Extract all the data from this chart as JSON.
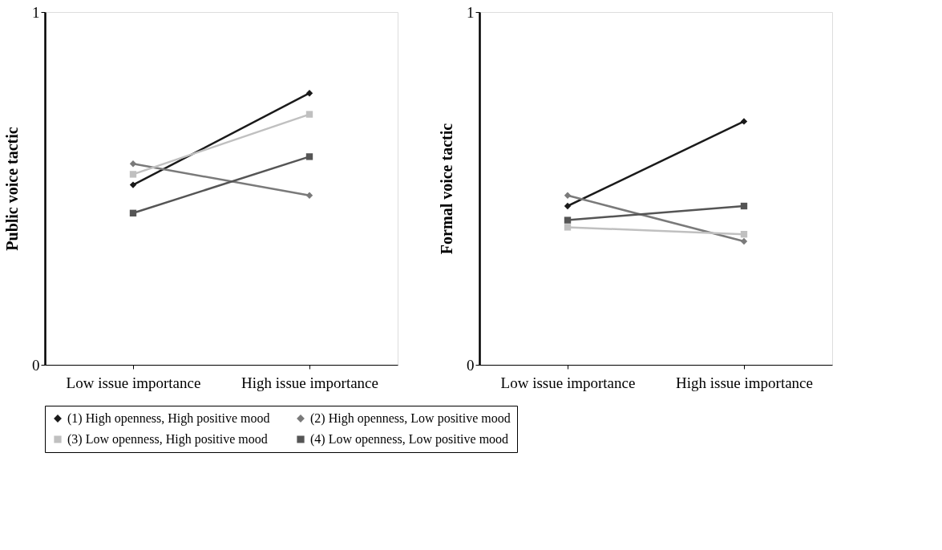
{
  "chart_data": [
    {
      "type": "line",
      "ylabel": "Public voice tactic",
      "categories": [
        "Low issue importance",
        "High issue importance"
      ],
      "ylim": [
        0,
        1
      ],
      "yticks": [
        0,
        1
      ],
      "legend": "bottom",
      "line_style": "solid",
      "series": [
        {
          "name": "(1) High openness, High positive mood",
          "color": "#1a1a1a",
          "marker": "diamond",
          "values": [
            0.51,
            0.77
          ]
        },
        {
          "name": "(2) High openness, Low positive mood",
          "color": "#7a7a7a",
          "marker": "diamond",
          "values": [
            0.57,
            0.48
          ]
        },
        {
          "name": "(3) Low openness, High positive mood",
          "color": "#c0c0c0",
          "marker": "square",
          "values": [
            0.54,
            0.71
          ]
        },
        {
          "name": "(4) Low openness, Low positive mood",
          "color": "#555555",
          "marker": "square",
          "values": [
            0.43,
            0.59
          ]
        }
      ]
    },
    {
      "type": "line",
      "ylabel": "Formal  voice tactic",
      "categories": [
        "Low issue importance",
        "High issue importance"
      ],
      "ylim": [
        0,
        1
      ],
      "yticks": [
        0,
        1
      ],
      "legend": "bottom",
      "line_style": "solid",
      "series": [
        {
          "name": "(1) High openness, High positive mood",
          "color": "#1a1a1a",
          "marker": "diamond",
          "values": [
            0.45,
            0.69
          ]
        },
        {
          "name": "(2) High openness, Low positive mood",
          "color": "#7a7a7a",
          "marker": "diamond",
          "values": [
            0.48,
            0.35
          ]
        },
        {
          "name": "(3) Low openness, High positive mood",
          "color": "#c0c0c0",
          "marker": "square",
          "values": [
            0.39,
            0.37
          ]
        },
        {
          "name": "(4) Low openness, Low positive mood",
          "color": "#555555",
          "marker": "square",
          "values": [
            0.41,
            0.45
          ]
        }
      ]
    }
  ]
}
